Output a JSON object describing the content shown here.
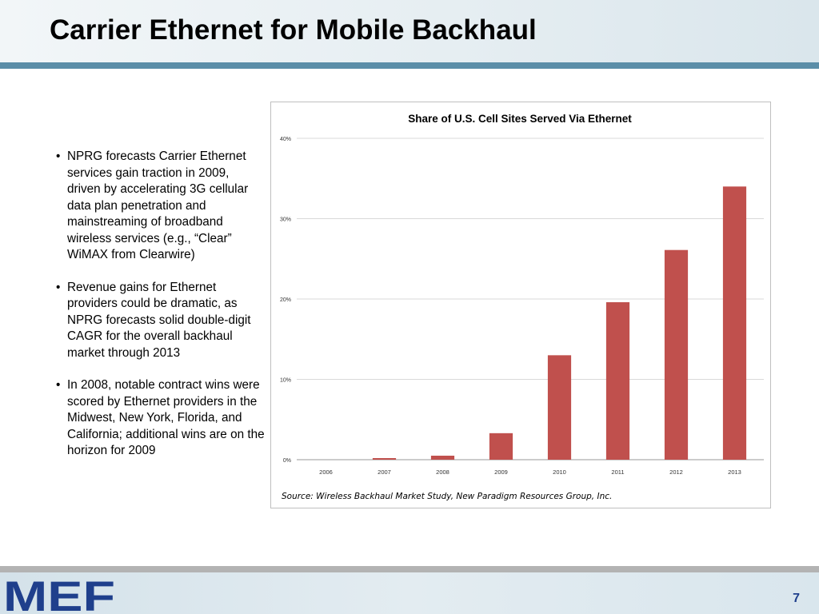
{
  "slide": {
    "title": "Carrier Ethernet for Mobile Backhaul",
    "page_number": "7",
    "logo_text": "MEF",
    "colors": {
      "header_bar": "#5b8ea8",
      "logo": "#1f3f8c",
      "bars": "#c0504d"
    }
  },
  "bullets": [
    "NPRG forecasts Carrier Ethernet services gain traction in 2009, driven by accelerating 3G cellular data plan penetration and mainstreaming of broadband wireless services (e.g., “Clear” WiMAX from Clearwire)",
    "Revenue gains for Ethernet providers could be dramatic, as NPRG forecasts solid double-digit CAGR for the overall backhaul market through 2013",
    "In 2008, notable contract wins were scored by Ethernet providers in the Midwest, New York, Florida, and California; additional wins are on the horizon for 2009"
  ],
  "chart_data": {
    "type": "bar",
    "title": "Share of U.S. Cell Sites Served Via Ethernet",
    "categories": [
      "2006",
      "2007",
      "2008",
      "2009",
      "2010",
      "2011",
      "2012",
      "2013"
    ],
    "values": [
      0,
      0.2,
      0.5,
      3.3,
      13.0,
      19.6,
      26.1,
      34.0
    ],
    "ylim": [
      0,
      40
    ],
    "yticks": [
      0,
      10,
      20,
      30,
      40
    ],
    "ytick_labels": [
      "0%",
      "10%",
      "20%",
      "30%",
      "40%"
    ],
    "grid": true,
    "source": "Source: Wireless Backhaul Market Study, New Paradigm Resources Group, Inc."
  }
}
